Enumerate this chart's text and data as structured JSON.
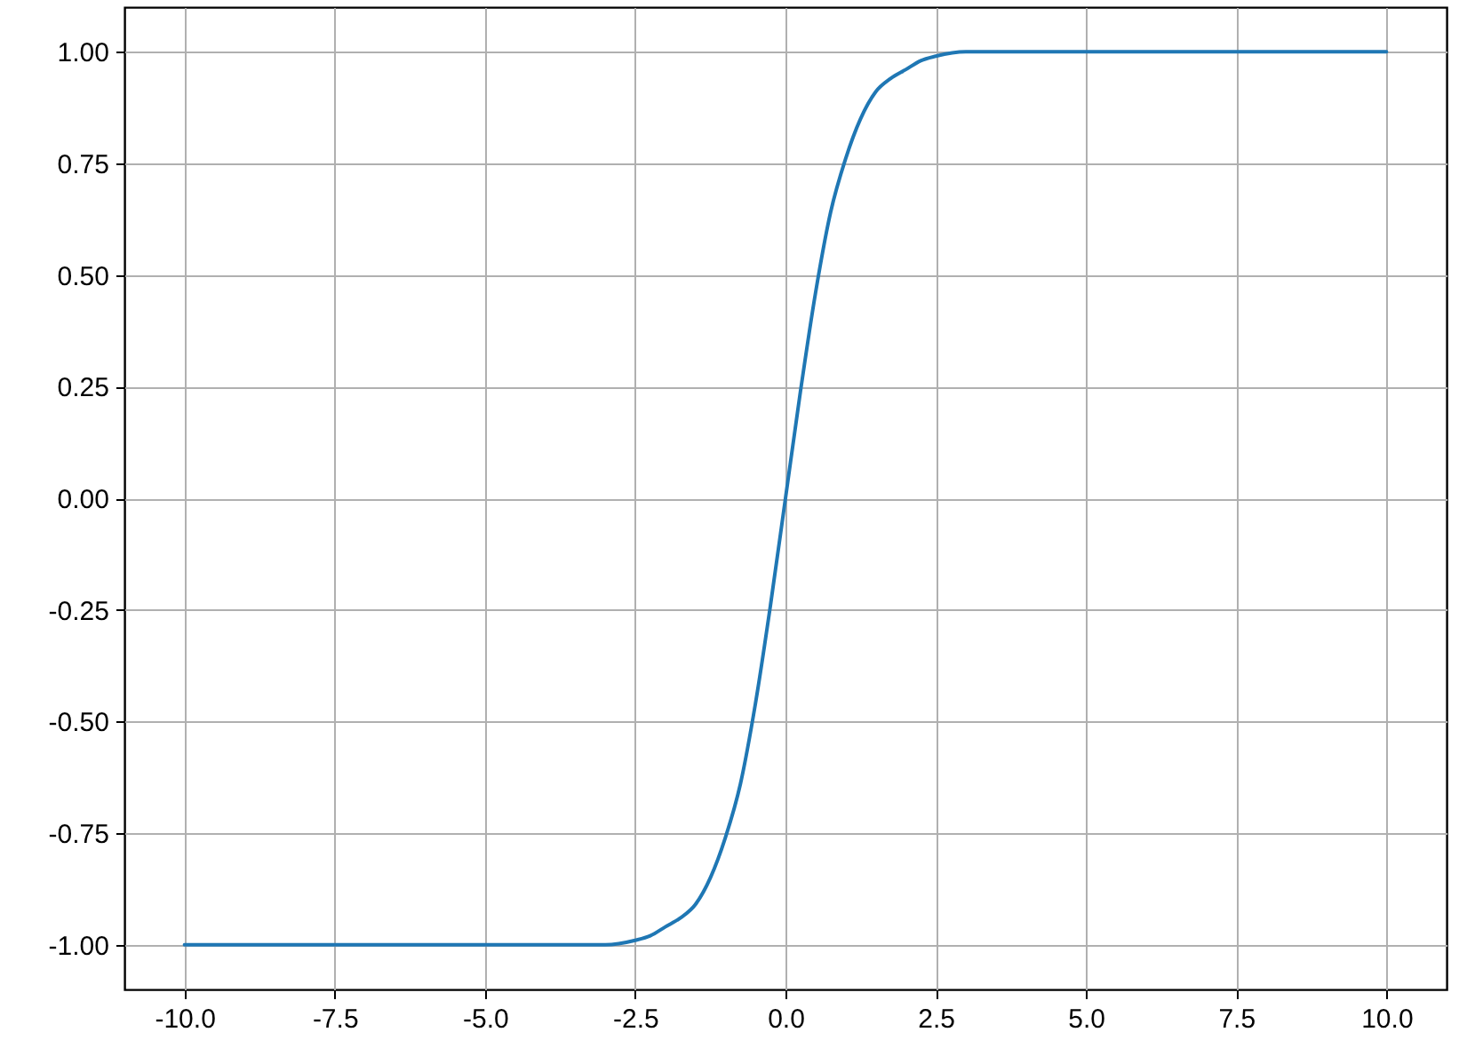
{
  "chart_data": {
    "type": "line",
    "x": [
      -10,
      -7.5,
      -5,
      -4,
      -3,
      -2.5,
      -2.25,
      -2,
      -1.75,
      -1.5,
      -1.25,
      -1,
      -0.75,
      -0.5,
      -0.25,
      0,
      0.25,
      0.5,
      0.75,
      1,
      1.25,
      1.5,
      1.75,
      2,
      2.25,
      2.5,
      3,
      4,
      5,
      7.5,
      10
    ],
    "values": [
      -1.0,
      -1.0,
      -1.0,
      -1.0,
      -1.0,
      -0.99,
      -0.98,
      -0.96,
      -0.94,
      -0.91,
      -0.85,
      -0.76,
      -0.64,
      -0.46,
      -0.24,
      0.0,
      0.24,
      0.46,
      0.64,
      0.76,
      0.85,
      0.91,
      0.94,
      0.96,
      0.98,
      0.99,
      1.0,
      1.0,
      1.0,
      1.0,
      1.0
    ],
    "color": "#1f77b4",
    "xlim": [
      -11,
      11
    ],
    "ylim": [
      -1.1,
      1.1
    ],
    "xticks": [
      {
        "value": -10,
        "label": "-10.0"
      },
      -7.5,
      {
        "value": -5,
        "label": "-5.0"
      },
      -2.5,
      {
        "value": 0,
        "label": "0.0"
      },
      2.5,
      {
        "value": 5,
        "label": "5.0"
      },
      7.5,
      {
        "value": 10,
        "label": "10.0"
      }
    ],
    "yticks": [
      {
        "value": -1,
        "label": "-1.00"
      },
      -0.75,
      {
        "value": -0.5,
        "label": "-0.50"
      },
      -0.25,
      {
        "value": 0,
        "label": "0.00"
      },
      0.25,
      {
        "value": 0.5,
        "label": "0.50"
      },
      0.75,
      {
        "value": 1,
        "label": "1.00"
      }
    ],
    "grid": true
  }
}
